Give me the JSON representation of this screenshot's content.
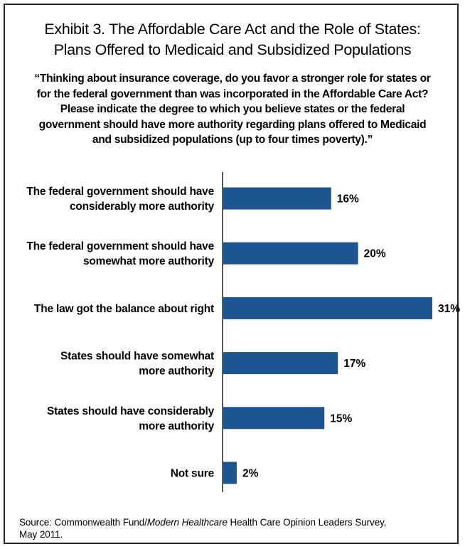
{
  "header": {
    "title_line1": "Exhibit 3. The Affordable Care Act and the Role of States:",
    "title_line2": "Plans Offered to Medicaid and Subsidized Populations"
  },
  "question": {
    "line1": "“Thinking about insurance coverage, do you favor a stronger role for states or",
    "line2": "for the federal government than was incorporated in the Affordable Care Act?",
    "line3": "Please indicate the degree to which you believe states or the federal",
    "line4": "government should have more authority regarding plans offered to Medicaid",
    "line5": "and subsidized populations (up to four times poverty).”"
  },
  "source": {
    "prefix": "Source: Commonwealth Fund/",
    "italic": "Modern Healthcare",
    "suffix": " Health Care Opinion Leaders Survey,",
    "line2": "May 2011."
  },
  "colors": {
    "bar": "#1d5590",
    "axis": "#000000",
    "border": "#222222"
  },
  "chart_data": {
    "type": "bar",
    "orientation": "horizontal",
    "title": "Exhibit 3. The Affordable Care Act and the Role of States: Plans Offered to Medicaid and Subsidized Populations",
    "categories": [
      [
        "The federal government should have",
        "considerably more authority"
      ],
      [
        "The federal government should have",
        "somewhat more authority"
      ],
      [
        "The law got the balance about right"
      ],
      [
        "States should have somewhat",
        "more authority"
      ],
      [
        "States should have considerably",
        "more authority"
      ],
      [
        "Not sure"
      ]
    ],
    "values": [
      16,
      20,
      31,
      17,
      15,
      2
    ],
    "value_labels": [
      "16%",
      "20%",
      "31%",
      "17%",
      "15%",
      "2%"
    ],
    "unit": "%",
    "xlim": [
      0,
      31
    ],
    "grid": false,
    "legend": "none"
  }
}
